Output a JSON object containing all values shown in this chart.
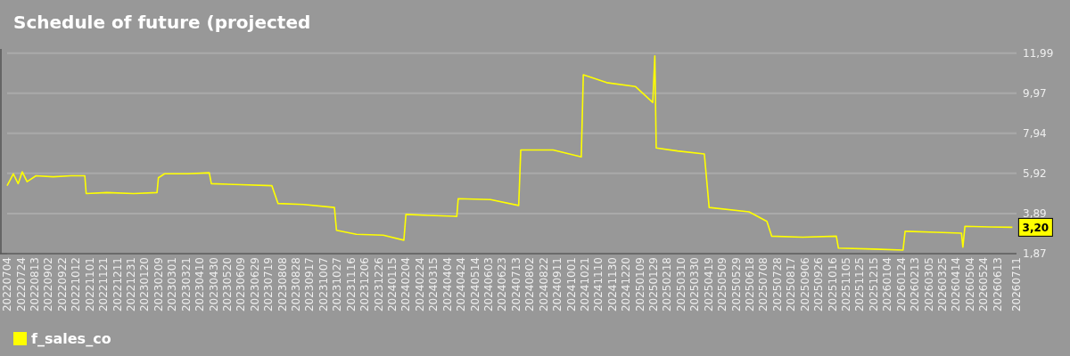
{
  "chart_data": {
    "type": "line",
    "title": "Schedule of future (projected",
    "x": [
      "2022-07-04",
      "2022-07-13",
      "2022-07-20",
      "2022-07-26",
      "2022-08-02",
      "2022-08-15",
      "2022-09-09",
      "2022-10-05",
      "2022-10-25",
      "2022-10-27",
      "2022-11-26",
      "2023-01-04",
      "2023-02-07",
      "2023-02-09",
      "2023-02-18",
      "2023-03-23",
      "2023-04-24",
      "2023-04-27",
      "2023-06-09",
      "2023-07-24",
      "2023-08-02",
      "2023-09-08",
      "2023-10-23",
      "2023-10-26",
      "2023-11-24",
      "2024-01-02",
      "2024-02-01",
      "2024-02-04",
      "2024-03-07",
      "2024-04-18",
      "2024-04-20",
      "2024-06-06",
      "2024-07-17",
      "2024-07-20",
      "2024-09-05",
      "2024-10-16",
      "2024-10-19",
      "2024-11-22",
      "2025-01-03",
      "2025-01-28",
      "2025-01-31",
      "2025-02-02",
      "2025-03-05",
      "2025-04-13",
      "2025-04-20",
      "2025-06-17",
      "2025-07-13",
      "2025-07-20",
      "2025-09-03",
      "2025-10-22",
      "2025-10-25",
      "2025-12-16",
      "2026-01-27",
      "2026-01-30",
      "2026-03-16",
      "2026-04-22",
      "2026-04-24",
      "2026-04-27",
      "2026-06-02",
      "2026-07-05"
    ],
    "series": [
      {
        "name": "f_sales_co",
        "color": "#ffff00",
        "values": [
          5.3,
          5.9,
          5.4,
          6.0,
          5.5,
          5.8,
          5.75,
          5.8,
          5.8,
          4.9,
          4.95,
          4.9,
          4.95,
          5.7,
          5.9,
          5.9,
          5.95,
          5.4,
          5.35,
          5.3,
          4.4,
          4.35,
          4.2,
          3.05,
          2.85,
          2.8,
          2.55,
          3.85,
          3.8,
          3.75,
          4.64,
          4.6,
          4.3,
          7.1,
          7.1,
          6.75,
          10.9,
          10.5,
          10.3,
          9.5,
          11.85,
          7.2,
          7.05,
          6.9,
          4.2,
          3.98,
          3.5,
          2.75,
          2.7,
          2.75,
          2.15,
          2.1,
          2.05,
          3.0,
          2.95,
          2.9,
          2.2,
          3.25,
          3.22,
          3.2
        ]
      }
    ],
    "xlim": [
      "2022-07-04",
      "2026-07-11"
    ],
    "xticks": [
      {
        "value": "2022-07-04",
        "label": "20220704"
      },
      {
        "value": "2022-07-24",
        "label": "20220724"
      },
      {
        "value": "2022-08-13",
        "label": "20220813"
      },
      {
        "value": "2022-09-02",
        "label": "20220902"
      },
      {
        "value": "2022-09-22",
        "label": "20220922"
      },
      {
        "value": "2022-10-12",
        "label": "20221012"
      },
      {
        "value": "2022-11-01",
        "label": "20221101"
      },
      {
        "value": "2022-11-21",
        "label": "20221121"
      },
      {
        "value": "2022-12-11",
        "label": "20221211"
      },
      {
        "value": "2022-12-31",
        "label": "20221231"
      },
      {
        "value": "2023-01-20",
        "label": "20230120"
      },
      {
        "value": "2023-02-09",
        "label": "20230209"
      },
      {
        "value": "2023-03-01",
        "label": "20230301"
      },
      {
        "value": "2023-03-21",
        "label": "20230321"
      },
      {
        "value": "2023-04-10",
        "label": "20230410"
      },
      {
        "value": "2023-04-30",
        "label": "20230430"
      },
      {
        "value": "2023-05-20",
        "label": "20230520"
      },
      {
        "value": "2023-06-09",
        "label": "20230609"
      },
      {
        "value": "2023-06-29",
        "label": "20230629"
      },
      {
        "value": "2023-07-19",
        "label": "20230719"
      },
      {
        "value": "2023-08-08",
        "label": "20230808"
      },
      {
        "value": "2023-08-28",
        "label": "20230828"
      },
      {
        "value": "2023-09-17",
        "label": "20230917"
      },
      {
        "value": "2023-10-07",
        "label": "20231007"
      },
      {
        "value": "2023-10-27",
        "label": "20231027"
      },
      {
        "value": "2023-11-16",
        "label": "20231116"
      },
      {
        "value": "2023-12-06",
        "label": "20231206"
      },
      {
        "value": "2023-12-26",
        "label": "20231226"
      },
      {
        "value": "2024-01-15",
        "label": "20240115"
      },
      {
        "value": "2024-02-04",
        "label": "20240204"
      },
      {
        "value": "2024-02-24",
        "label": "20240224"
      },
      {
        "value": "2024-03-15",
        "label": "20240315"
      },
      {
        "value": "2024-04-04",
        "label": "20240404"
      },
      {
        "value": "2024-04-24",
        "label": "20240424"
      },
      {
        "value": "2024-05-14",
        "label": "20240514"
      },
      {
        "value": "2024-06-03",
        "label": "20240603"
      },
      {
        "value": "2024-06-23",
        "label": "20240623"
      },
      {
        "value": "2024-07-13",
        "label": "20240713"
      },
      {
        "value": "2024-08-02",
        "label": "20240802"
      },
      {
        "value": "2024-08-22",
        "label": "20240822"
      },
      {
        "value": "2024-09-11",
        "label": "20240911"
      },
      {
        "value": "2024-10-01",
        "label": "20241001"
      },
      {
        "value": "2024-10-21",
        "label": "20241021"
      },
      {
        "value": "2024-11-10",
        "label": "20241110"
      },
      {
        "value": "2024-11-30",
        "label": "20241130"
      },
      {
        "value": "2024-12-20",
        "label": "20241220"
      },
      {
        "value": "2025-01-09",
        "label": "20250109"
      },
      {
        "value": "2025-01-29",
        "label": "20250129"
      },
      {
        "value": "2025-02-18",
        "label": "20250218"
      },
      {
        "value": "2025-03-10",
        "label": "20250310"
      },
      {
        "value": "2025-03-30",
        "label": "20250330"
      },
      {
        "value": "2025-04-19",
        "label": "20250419"
      },
      {
        "value": "2025-05-09",
        "label": "20250509"
      },
      {
        "value": "2025-05-29",
        "label": "20250529"
      },
      {
        "value": "2025-06-18",
        "label": "20250618"
      },
      {
        "value": "2025-07-08",
        "label": "20250708"
      },
      {
        "value": "2025-07-28",
        "label": "20250728"
      },
      {
        "value": "2025-08-17",
        "label": "20250817"
      },
      {
        "value": "2025-09-06",
        "label": "20250906"
      },
      {
        "value": "2025-09-26",
        "label": "20250926"
      },
      {
        "value": "2025-10-16",
        "label": "20251016"
      },
      {
        "value": "2025-11-05",
        "label": "20251105"
      },
      {
        "value": "2025-11-25",
        "label": "20251125"
      },
      {
        "value": "2025-12-15",
        "label": "20251215"
      },
      {
        "value": "2026-01-04",
        "label": "20260104"
      },
      {
        "value": "2026-01-24",
        "label": "20260124"
      },
      {
        "value": "2026-02-13",
        "label": "20260213"
      },
      {
        "value": "2026-03-05",
        "label": "20260305"
      },
      {
        "value": "2026-03-25",
        "label": "20260325"
      },
      {
        "value": "2026-04-14",
        "label": "20260414"
      },
      {
        "value": "2026-05-04",
        "label": "20260504"
      },
      {
        "value": "2026-05-24",
        "label": "20260524"
      },
      {
        "value": "2026-06-13",
        "label": "20260613"
      },
      {
        "value": "2026-07-11",
        "label": "20260711"
      }
    ],
    "ylim": [
      1.87,
      12.2
    ],
    "yticks": [
      {
        "value": 1.87,
        "label": "1,87"
      },
      {
        "value": 3.89,
        "label": "3,89"
      },
      {
        "value": 5.92,
        "label": "5,92"
      },
      {
        "value": 7.94,
        "label": "7,94"
      },
      {
        "value": 9.97,
        "label": "9,97"
      },
      {
        "value": 11.99,
        "label": "11,99"
      }
    ],
    "annotations": [
      {
        "text": "3,20",
        "x": "2026-07-05",
        "y": 3.2
      }
    ],
    "grid": "y",
    "legend": "bottom left"
  }
}
